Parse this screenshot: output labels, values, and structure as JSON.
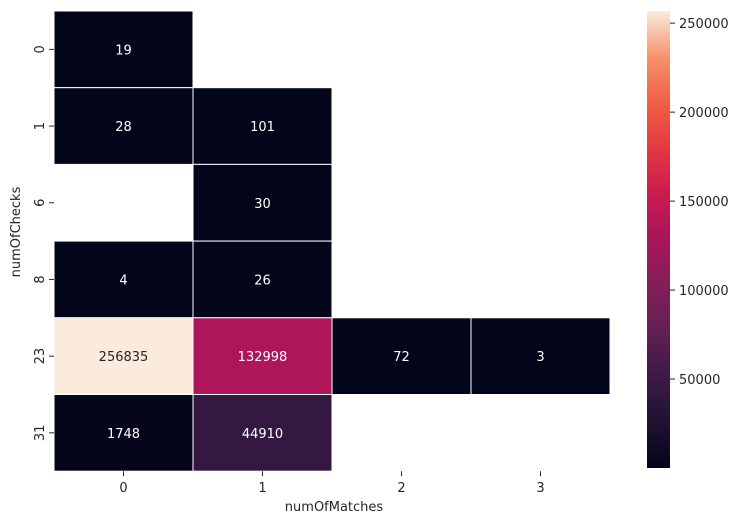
{
  "chart_data": {
    "type": "heatmap",
    "title": "",
    "xlabel": "numOfMatches",
    "ylabel": "numOfChecks",
    "x_categories": [
      "0",
      "1",
      "2",
      "3"
    ],
    "y_categories": [
      "0",
      "1",
      "6",
      "8",
      "23",
      "31"
    ],
    "values": [
      [
        19,
        null,
        null,
        null
      ],
      [
        28,
        101,
        null,
        null
      ],
      [
        null,
        30,
        null,
        null
      ],
      [
        4,
        26,
        null,
        null
      ],
      [
        256835,
        132998,
        72,
        3
      ],
      [
        1748,
        44910,
        null,
        null
      ]
    ],
    "cell_labels": [
      [
        "19",
        "",
        "",
        ""
      ],
      [
        "28",
        "101",
        "",
        ""
      ],
      [
        "",
        "30",
        "",
        ""
      ],
      [
        "4",
        "26",
        "",
        ""
      ],
      [
        "256835",
        "132998",
        "72",
        "3"
      ],
      [
        "1748",
        "44910",
        "",
        ""
      ]
    ],
    "colorbar": {
      "min": 3,
      "max": 256835,
      "ticks": [
        50000,
        100000,
        150000,
        200000,
        250000
      ],
      "tick_labels": [
        "50000",
        "100000",
        "150000",
        "200000",
        "250000"
      ],
      "colormap": "rocket"
    },
    "grid": false,
    "legend": "colorbar-right"
  }
}
